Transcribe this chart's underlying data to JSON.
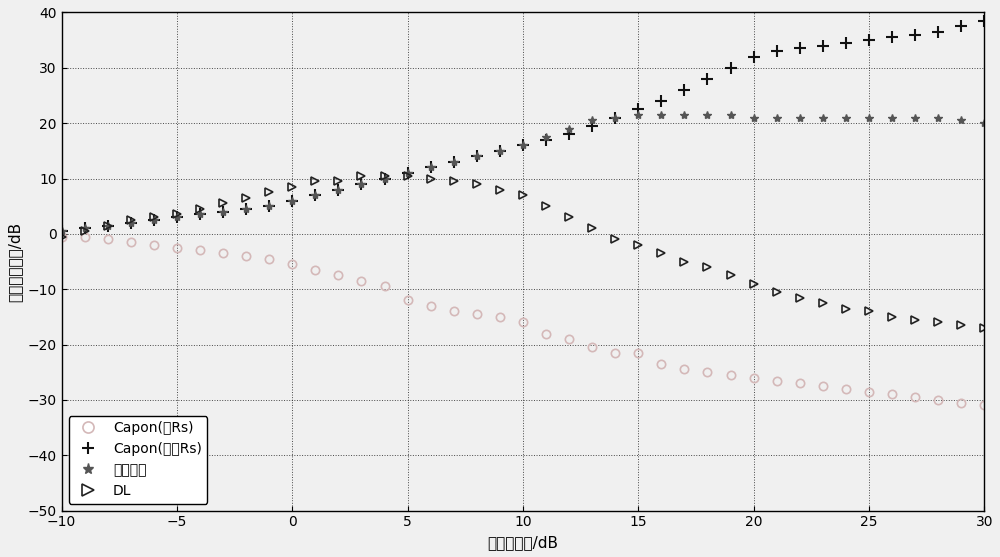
{
  "title": "",
  "xlabel": "输入信噪比/dB",
  "ylabel": "输出信干噪比/dB",
  "xlim": [
    -10,
    30
  ],
  "ylim": [
    -50,
    40
  ],
  "xticks": [
    -10,
    -5,
    0,
    5,
    10,
    15,
    20,
    25,
    30
  ],
  "yticks": [
    -50,
    -40,
    -30,
    -20,
    -10,
    0,
    10,
    20,
    30,
    40
  ],
  "figsize": [
    10.0,
    5.57
  ],
  "dpi": 100,
  "capon_rs_x": [
    -10,
    -9,
    -8,
    -7,
    -6,
    -5,
    -4,
    -3,
    -2,
    -1,
    0,
    1,
    2,
    3,
    4,
    5,
    6,
    7,
    8,
    9,
    10,
    11,
    12,
    13,
    14,
    15,
    16,
    17,
    18,
    19,
    20,
    21,
    22,
    23,
    24,
    25,
    26,
    27,
    28,
    29,
    30
  ],
  "capon_rs_y": [
    -0.5,
    -0.5,
    -1.0,
    -1.5,
    -2.0,
    -2.5,
    -3.0,
    -3.5,
    -4.0,
    -4.5,
    -5.5,
    -6.5,
    -7.5,
    -8.5,
    -9.5,
    -12.0,
    -13.0,
    -14.0,
    -14.5,
    -15.0,
    -16.0,
    -18.0,
    -19.0,
    -20.5,
    -21.5,
    -21.5,
    -23.5,
    -24.5,
    -25.0,
    -25.5,
    -26.0,
    -26.5,
    -27.0,
    -27.5,
    -28.0,
    -28.5,
    -29.0,
    -29.5,
    -30.0,
    -30.5,
    -31.0
  ],
  "capon_nors_x": [
    -10,
    -9,
    -8,
    -7,
    -6,
    -5,
    -4,
    -3,
    -2,
    -1,
    0,
    1,
    2,
    3,
    4,
    5,
    6,
    7,
    8,
    9,
    10,
    11,
    12,
    13,
    14,
    15,
    16,
    17,
    18,
    19,
    20,
    21,
    22,
    23,
    24,
    25,
    26,
    27,
    28,
    29,
    30
  ],
  "capon_nors_y": [
    0.5,
    1.0,
    1.5,
    2.0,
    2.5,
    3.0,
    3.5,
    4.0,
    4.5,
    5.0,
    6.0,
    7.0,
    8.0,
    9.0,
    10.0,
    11.0,
    12.0,
    13.0,
    14.0,
    15.0,
    16.0,
    17.0,
    18.0,
    19.5,
    21.0,
    22.5,
    24.0,
    26.0,
    28.0,
    30.0,
    32.0,
    33.0,
    33.5,
    34.0,
    34.5,
    35.0,
    35.5,
    36.0,
    36.5,
    37.5,
    38.5
  ],
  "improved_x": [
    -10,
    -9,
    -8,
    -7,
    -6,
    -5,
    -4,
    -3,
    -2,
    -1,
    0,
    1,
    2,
    3,
    4,
    5,
    6,
    7,
    8,
    9,
    10,
    11,
    12,
    13,
    14,
    15,
    16,
    17,
    18,
    19,
    20,
    21,
    22,
    23,
    24,
    25,
    26,
    27,
    28,
    29,
    30
  ],
  "improved_y": [
    0.5,
    1.0,
    1.5,
    2.0,
    2.5,
    3.0,
    3.5,
    4.0,
    4.5,
    5.0,
    6.0,
    7.0,
    8.0,
    9.0,
    10.0,
    11.0,
    12.0,
    13.0,
    14.0,
    15.0,
    16.0,
    17.5,
    19.0,
    20.5,
    21.0,
    21.5,
    21.5,
    21.5,
    21.5,
    21.5,
    21.0,
    21.0,
    21.0,
    21.0,
    21.0,
    21.0,
    21.0,
    21.0,
    21.0,
    20.5,
    20.0
  ],
  "dl_x": [
    -10,
    -9,
    -8,
    -7,
    -6,
    -5,
    -4,
    -3,
    -2,
    -1,
    0,
    1,
    2,
    3,
    4,
    5,
    6,
    7,
    8,
    9,
    10,
    11,
    12,
    13,
    14,
    15,
    16,
    17,
    18,
    19,
    20,
    21,
    22,
    23,
    24,
    25,
    26,
    27,
    28,
    29,
    30
  ],
  "dl_y": [
    -0.5,
    0.5,
    1.5,
    2.5,
    3.0,
    3.5,
    4.5,
    5.5,
    6.5,
    7.5,
    8.5,
    9.5,
    9.5,
    10.5,
    10.5,
    10.5,
    10.0,
    9.5,
    9.0,
    8.0,
    7.0,
    5.0,
    3.0,
    1.0,
    -1.0,
    -2.0,
    -3.5,
    -5.0,
    -6.0,
    -7.5,
    -9.0,
    -10.5,
    -11.5,
    -12.5,
    -13.5,
    -14.0,
    -15.0,
    -15.5,
    -16.0,
    -16.5,
    -17.0
  ],
  "legend": [
    "Capon(含Rs)",
    "Capon(不含Rs)",
    "本文改进",
    "DL"
  ],
  "capon_rs_color": "#d4b8b8",
  "capon_nors_color": "#111111",
  "improved_color": "#555555",
  "dl_color": "#222222",
  "background_color": "#f0f0f0",
  "grid_color": "#000000",
  "grid_linestyle": ":",
  "grid_alpha": 0.7
}
